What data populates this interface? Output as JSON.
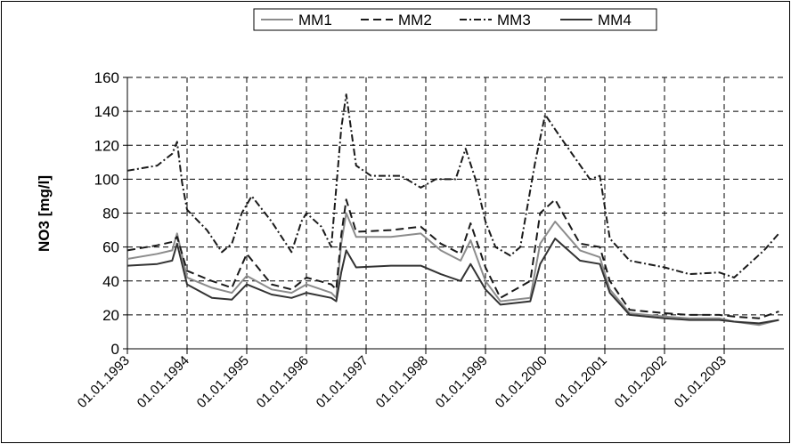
{
  "chart_data": {
    "type": "line",
    "title": "",
    "xlabel": "",
    "ylabel": "NO3 [mg/l]",
    "ylim": [
      0,
      160
    ],
    "yticks": [
      "0",
      "20",
      "40",
      "60",
      "80",
      "100",
      "120",
      "140",
      "160"
    ],
    "xlim": [
      "01.01.1993",
      "31.12.2003"
    ],
    "xticks": [
      "01.01.1993",
      "01.01.1994",
      "01.01.1995",
      "01.01.1996",
      "01.01.1997",
      "01.01.1998",
      "01.01.1999",
      "01.01.2000",
      "01.01.2001",
      "01.01.2002",
      "01.01.2003"
    ],
    "grid": true,
    "legend_position": "top",
    "series": [
      {
        "name": "MM1",
        "color": "#8c8c8c",
        "dash": "solid",
        "x": [
          "1993-01",
          "1993-07",
          "1993-10",
          "1993-11",
          "1994-01",
          "1994-06",
          "1994-10",
          "1995-01",
          "1995-06",
          "1995-10",
          "1996-01",
          "1996-06",
          "1996-07",
          "1996-08",
          "1996-09",
          "1996-11",
          "1997-06",
          "1997-12",
          "1998-04",
          "1998-08",
          "1998-10",
          "1999-01",
          "1999-04",
          "1999-10",
          "1999-12",
          "2000-03",
          "2000-08",
          "2000-12",
          "2001-02",
          "2001-06",
          "2002-01",
          "2002-06",
          "2002-12",
          "2003-03",
          "2003-08",
          "2003-12"
        ],
        "y": [
          53,
          56,
          58,
          68,
          42,
          36,
          33,
          43,
          35,
          33,
          38,
          33,
          30,
          62,
          80,
          66,
          66,
          68,
          58,
          52,
          64,
          40,
          28,
          30,
          62,
          75,
          58,
          54,
          35,
          21,
          19,
          18,
          18,
          16,
          14,
          17
        ]
      },
      {
        "name": "MM2",
        "color": "#1a1a1a",
        "dash": "dashed",
        "x": [
          "1993-01",
          "1993-07",
          "1993-10",
          "1993-11",
          "1994-01",
          "1994-06",
          "1994-10",
          "1995-01",
          "1995-06",
          "1995-10",
          "1996-01",
          "1996-06",
          "1996-07",
          "1996-08",
          "1996-09",
          "1996-11",
          "1997-06",
          "1997-12",
          "1998-04",
          "1998-08",
          "1998-10",
          "1999-01",
          "1999-04",
          "1999-10",
          "1999-12",
          "2000-03",
          "2000-08",
          "2000-12",
          "2001-02",
          "2001-06",
          "2002-01",
          "2002-06",
          "2002-12",
          "2003-03",
          "2003-08",
          "2003-12"
        ],
        "y": [
          58,
          61,
          63,
          66,
          46,
          40,
          36,
          56,
          38,
          35,
          42,
          38,
          35,
          67,
          88,
          69,
          70,
          72,
          62,
          56,
          74,
          48,
          30,
          40,
          80,
          88,
          62,
          60,
          40,
          23,
          21,
          20,
          20,
          19,
          18,
          22
        ]
      },
      {
        "name": "MM3",
        "color": "#1a1a1a",
        "dash": "dashdot",
        "x": [
          "1993-01",
          "1993-07",
          "1993-10",
          "1993-11",
          "1993-12",
          "1994-01",
          "1994-05",
          "1994-08",
          "1994-10",
          "1994-12",
          "1995-02",
          "1995-06",
          "1995-10",
          "1995-12",
          "1996-01",
          "1996-04",
          "1996-06",
          "1996-08",
          "1996-09",
          "1996-11",
          "1997-02",
          "1997-08",
          "1997-12",
          "1998-03",
          "1998-07",
          "1998-09",
          "1998-11",
          "1999-01",
          "1999-03",
          "1999-06",
          "1999-08",
          "1999-11",
          "2000-01",
          "2000-04",
          "2000-10",
          "2000-12",
          "2001-02",
          "2001-06",
          "2002-01",
          "2002-06",
          "2002-12",
          "2003-03",
          "2003-06",
          "2003-09",
          "2003-12"
        ],
        "y": [
          105,
          108,
          115,
          122,
          98,
          82,
          70,
          57,
          62,
          80,
          90,
          75,
          57,
          75,
          80,
          72,
          60,
          130,
          150,
          108,
          102,
          102,
          95,
          100,
          100,
          118,
          100,
          75,
          60,
          55,
          60,
          110,
          138,
          125,
          100,
          102,
          65,
          52,
          48,
          44,
          45,
          42,
          50,
          58,
          68
        ]
      },
      {
        "name": "MM4",
        "color": "#333333",
        "dash": "solid",
        "x": [
          "1993-01",
          "1993-07",
          "1993-10",
          "1993-11",
          "1994-01",
          "1994-06",
          "1994-10",
          "1995-01",
          "1995-06",
          "1995-10",
          "1996-01",
          "1996-06",
          "1996-07",
          "1996-08",
          "1996-09",
          "1996-11",
          "1997-06",
          "1997-12",
          "1998-04",
          "1998-08",
          "1998-10",
          "1999-01",
          "1999-04",
          "1999-10",
          "1999-12",
          "2000-03",
          "2000-08",
          "2000-12",
          "2001-02",
          "2001-06",
          "2002-01",
          "2002-06",
          "2002-12",
          "2003-03",
          "2003-08",
          "2003-12"
        ],
        "y": [
          49,
          50,
          52,
          62,
          38,
          30,
          29,
          38,
          32,
          30,
          33,
          30,
          28,
          45,
          58,
          48,
          49,
          49,
          44,
          40,
          50,
          35,
          26,
          28,
          50,
          65,
          52,
          50,
          33,
          20,
          18,
          17,
          17,
          16,
          15,
          17
        ]
      }
    ]
  }
}
